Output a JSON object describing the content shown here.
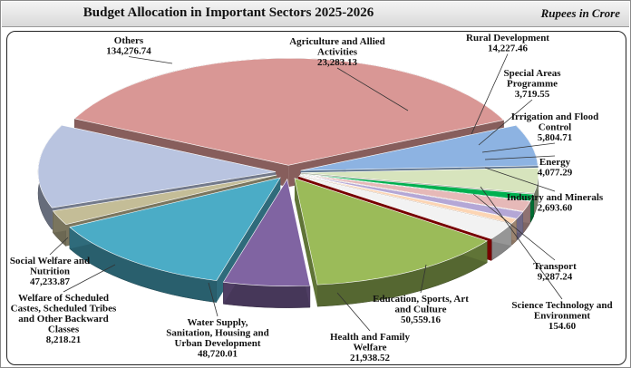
{
  "header": {
    "title": "Budget Allocation in Important Sectors 2025-2026",
    "unit": "Rupees in Crore"
  },
  "chart_data": {
    "type": "pie",
    "title": "Budget Allocation in Important Sectors 2025-2026",
    "unit": "Rupees in Crore",
    "slices": [
      {
        "label": [
          "Agriculture and Allied",
          "Activities"
        ],
        "value_text": "23,283.13",
        "value": 23283.13,
        "color": "#8db3e2"
      },
      {
        "label": [
          "Rural Development"
        ],
        "value_text": "14,227.46",
        "value": 14227.46,
        "color": "#d7e4bd"
      },
      {
        "label": [
          "Special Areas",
          "Programme"
        ],
        "value_text": "3,719.55",
        "value": 3719.55,
        "color": "#00b050"
      },
      {
        "label": [
          "Irrigation and Flood",
          "Control"
        ],
        "value_text": "5,804.71",
        "value": 5804.71,
        "color": "#e6b9b8"
      },
      {
        "label": [
          "Energy"
        ],
        "value_text": "4,077.29",
        "value": 4077.29,
        "color": "#b4a7d6"
      },
      {
        "label": [
          "Industry and Minerals"
        ],
        "value_text": "2,693.60",
        "value": 2693.6,
        "color": "#fcd5b4"
      },
      {
        "label": [
          "Transport"
        ],
        "value_text": "9,287.24",
        "value": 9287.24,
        "color": "#f2f2f2"
      },
      {
        "label": [
          "Science Technology and",
          "Environment"
        ],
        "value_text": "154.60",
        "value": 154.6,
        "color": "#c00000"
      },
      {
        "label": [
          "Education, Sports, Art",
          "and Culture"
        ],
        "value_text": "50,559.16",
        "value": 50559.16,
        "color": "#9bbb59"
      },
      {
        "label": [
          "Health and Family",
          "Welfare"
        ],
        "value_text": "21,938.52",
        "value": 21938.52,
        "color": "#8064a2"
      },
      {
        "label": [
          "Water Supply,",
          "Sanitation, Housing and",
          "Urban Development"
        ],
        "value_text": "48,720.01",
        "value": 48720.01,
        "color": "#4bacc6"
      },
      {
        "label": [
          "Welfare of Scheduled",
          "Castes, Scheduled Tribes",
          "and Other Backward",
          "Classes"
        ],
        "value_text": "8,218.21",
        "value": 8218.21,
        "color": "#c4bd97"
      },
      {
        "label": [
          "Social Welfare and",
          "Nutrition"
        ],
        "value_text": "47,233.87",
        "value": 47233.87,
        "color": "#b9c4e0"
      },
      {
        "label": [
          "Others"
        ],
        "value_text": "134,276.74",
        "value": 134276.74,
        "color": "#d99795"
      }
    ]
  }
}
